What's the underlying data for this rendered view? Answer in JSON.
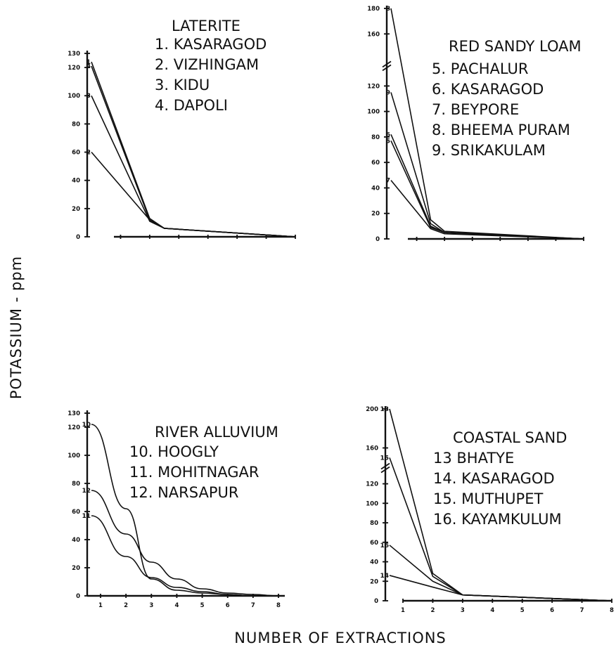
{
  "figure": {
    "ylabel": "POTASSIUM - ppm",
    "xlabel": "NUMBER OF EXTRACTIONS"
  },
  "chart_data": [
    {
      "type": "line",
      "title": "LATERITE",
      "legend": [
        "1. KASARAGOD",
        "2. VIZHINGAM",
        "3. KIDU",
        "4. DAPOLI"
      ],
      "yticks": [
        "0",
        "20",
        "40",
        "60",
        "80",
        "100",
        "120",
        "130"
      ],
      "xticks": [],
      "xlim": [
        1,
        8
      ],
      "ylim": [
        0,
        130
      ],
      "series": [
        {
          "name": "1",
          "x": [
            1,
            3,
            3.5,
            8
          ],
          "y": [
            124,
            13,
            6,
            0
          ]
        },
        {
          "name": "4",
          "x": [
            1,
            3,
            3.5,
            8
          ],
          "y": [
            121,
            12,
            6,
            0
          ]
        },
        {
          "name": "3",
          "x": [
            1,
            3,
            3.5,
            8
          ],
          "y": [
            100,
            11,
            6,
            0
          ]
        },
        {
          "name": "2",
          "x": [
            1,
            3,
            3.5,
            8
          ],
          "y": [
            60,
            12,
            6,
            0
          ]
        }
      ]
    },
    {
      "type": "line",
      "title": "RED SANDY LOAM",
      "legend": [
        "5. PACHALUR",
        "6. KASARAGOD",
        "7. BEYPORE",
        "8. BHEEMA PURAM",
        "9. SRIKAKULAM"
      ],
      "yticks": [
        "0",
        "20",
        "40",
        "60",
        "80",
        "100",
        "120",
        "160",
        "180"
      ],
      "xticks": [],
      "xlim": [
        1,
        8
      ],
      "ylim": [
        0,
        180
      ],
      "y_axis_break": [
        130,
        140
      ],
      "series": [
        {
          "name": "8",
          "x": [
            1,
            2.5,
            3,
            8
          ],
          "y": [
            180,
            15,
            6,
            0
          ]
        },
        {
          "name": "9",
          "x": [
            1,
            2.5,
            3,
            8
          ],
          "y": [
            115,
            12,
            5,
            0
          ]
        },
        {
          "name": "6",
          "x": [
            1,
            2.5,
            3,
            8
          ],
          "y": [
            82,
            10,
            5,
            0
          ]
        },
        {
          "name": "5",
          "x": [
            1,
            2.5,
            3,
            8
          ],
          "y": [
            77,
            9,
            5,
            0
          ]
        },
        {
          "name": "7",
          "x": [
            1,
            2.5,
            3,
            8
          ],
          "y": [
            46,
            8,
            4,
            0
          ]
        }
      ]
    },
    {
      "type": "line",
      "title": "RIVER ALLUVIUM",
      "legend": [
        "10. HOOGLY",
        "11. MOHITNAGAR",
        "12. NARSAPUR"
      ],
      "yticks": [
        "0",
        "20",
        "40",
        "60",
        "80",
        "100",
        "120",
        "130"
      ],
      "xticks": [
        "1",
        "2",
        "3",
        "4",
        "5",
        "6",
        "7",
        "8"
      ],
      "xlim": [
        1,
        8
      ],
      "ylim": [
        0,
        130
      ],
      "series": [
        {
          "name": "10",
          "x": [
            1,
            2,
            3,
            4,
            5,
            6,
            7,
            8
          ],
          "y": [
            122,
            62,
            12,
            4,
            2,
            1,
            0,
            0
          ]
        },
        {
          "name": "12",
          "x": [
            1,
            2,
            3,
            4,
            5,
            6,
            7,
            8
          ],
          "y": [
            75,
            44,
            24,
            12,
            5,
            2,
            1,
            0
          ]
        },
        {
          "name": "11",
          "x": [
            1,
            2,
            3,
            4,
            5,
            6,
            7,
            8
          ],
          "y": [
            57,
            28,
            13,
            6,
            3,
            1,
            0,
            0
          ]
        }
      ]
    },
    {
      "type": "line",
      "title": "COASTAL SAND",
      "legend": [
        "13 BHATYE",
        "14. KASARAGOD",
        "15. MUTHUPET",
        "16. KAYAMKULUM"
      ],
      "yticks": [
        "0",
        "20",
        "40",
        "60",
        "80",
        "100",
        "120",
        "160",
        "200"
      ],
      "xticks": [
        "1",
        "2",
        "3",
        "4",
        "5",
        "6",
        "7",
        "8"
      ],
      "xlim": [
        1,
        8
      ],
      "ylim": [
        0,
        200
      ],
      "y_axis_break": [
        130,
        145
      ],
      "series": [
        {
          "name": "13",
          "x": [
            1,
            2,
            3,
            8
          ],
          "y": [
            200,
            28,
            6,
            0
          ]
        },
        {
          "name": "15",
          "x": [
            1,
            2,
            3,
            8
          ],
          "y": [
            150,
            25,
            6,
            0
          ]
        },
        {
          "name": "16",
          "x": [
            1,
            2,
            3,
            8
          ],
          "y": [
            57,
            20,
            6,
            0
          ]
        },
        {
          "name": "14",
          "x": [
            1,
            2,
            3,
            8
          ],
          "y": [
            26,
            14,
            6,
            0
          ]
        }
      ]
    }
  ]
}
